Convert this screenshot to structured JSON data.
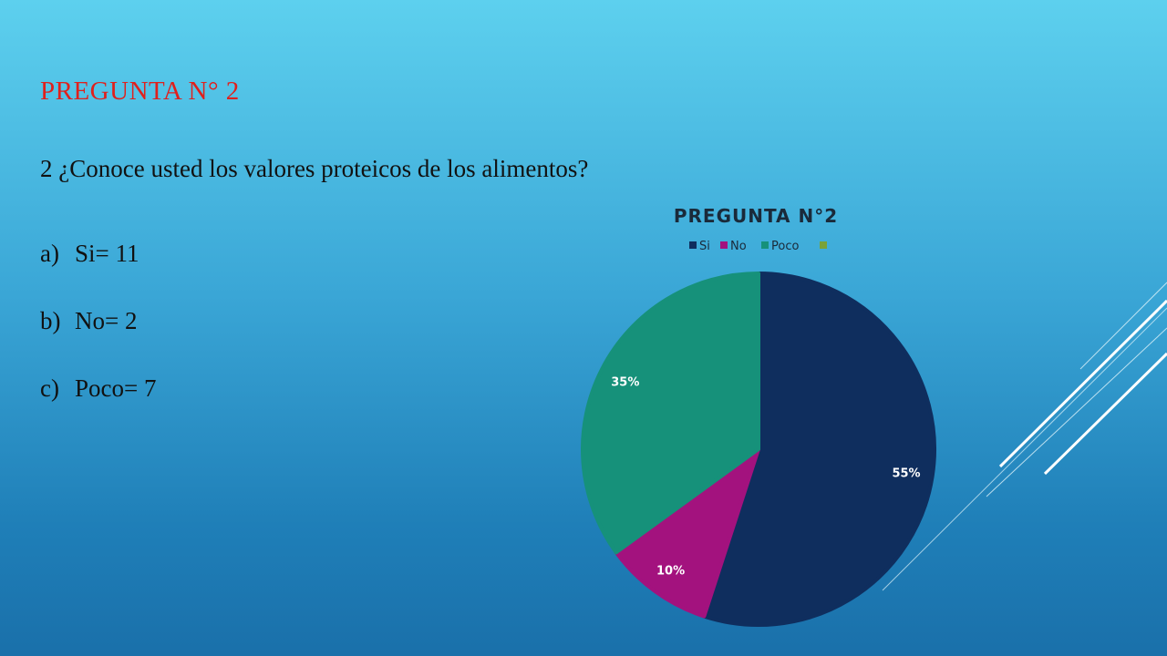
{
  "slide": {
    "title": "PREGUNTA N° 2",
    "question": "2 ¿Conoce usted los valores proteicos de los alimentos?",
    "options": [
      {
        "letter": "a)",
        "text": "Si= 11"
      },
      {
        "letter": "b)",
        "text": "No= 2"
      },
      {
        "letter": "c)",
        "text": "Poco= 7"
      }
    ]
  },
  "colors": {
    "title": "#e0201c",
    "si": "#0f2e5e",
    "no": "#a3127e",
    "poco": "#16917a",
    "fourth": "#7aa23a"
  },
  "chart_data": {
    "type": "pie",
    "title": "PREGUNTA N°2",
    "legend_position": "top",
    "categories": [
      "Si",
      "No",
      "Poco",
      ""
    ],
    "values": [
      11,
      2,
      7,
      0
    ],
    "data_labels": [
      "55%",
      "10%",
      "35%",
      ""
    ]
  }
}
